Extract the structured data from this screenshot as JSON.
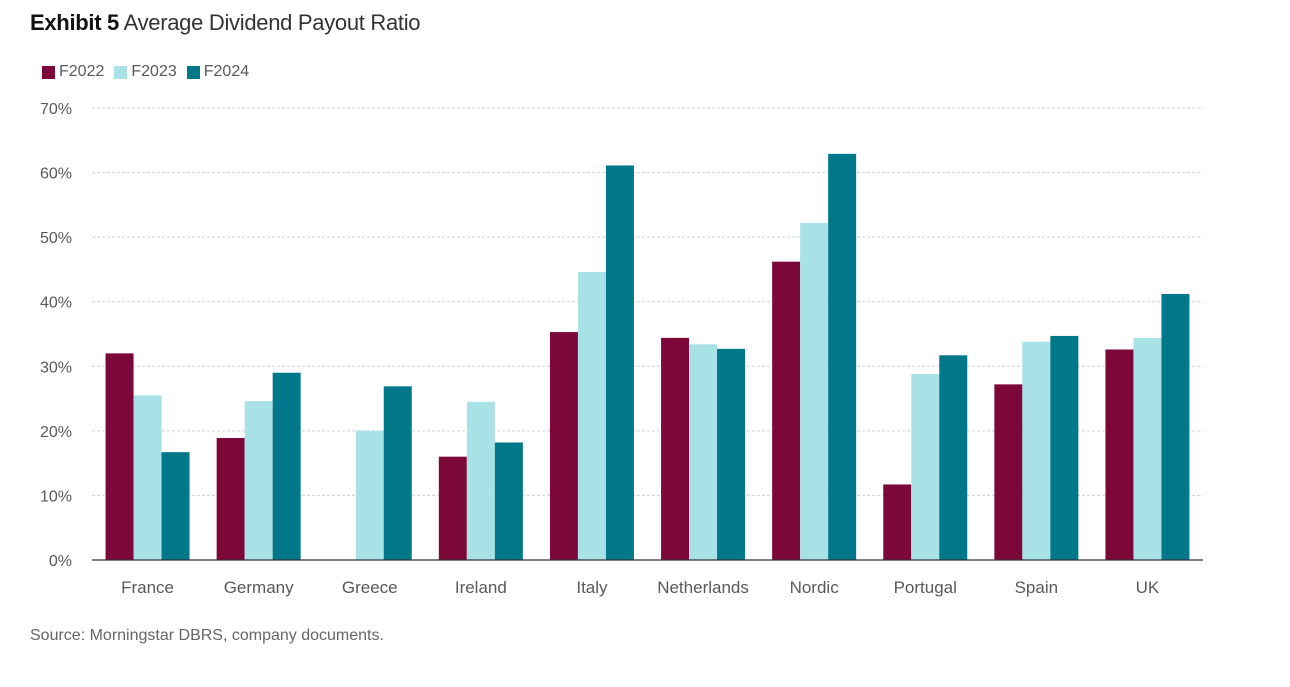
{
  "header": {
    "exhibit": "Exhibit 5",
    "subtitle": "Average Dividend Payout Ratio"
  },
  "source": "Source: Morningstar DBRS, company documents.",
  "colors": {
    "F2022": "#7b0838",
    "F2023": "#a8e1e6",
    "F2024": "#00788a",
    "grid": "#d0d0d0",
    "axis": "#333333",
    "text": "#595959"
  },
  "chart_data": {
    "type": "bar",
    "title": "Average Dividend Payout Ratio",
    "categories": [
      "France",
      "Germany",
      "Greece",
      "Ireland",
      "Italy",
      "Netherlands",
      "Nordic",
      "Portugal",
      "Spain",
      "UK"
    ],
    "series": [
      {
        "name": "F2022",
        "color": "#7b0838",
        "values": [
          32.0,
          18.9,
          null,
          16.0,
          35.3,
          34.4,
          46.2,
          11.7,
          27.2,
          32.6
        ]
      },
      {
        "name": "F2023",
        "color": "#a8e1e6",
        "values": [
          25.5,
          24.6,
          20.0,
          24.5,
          44.6,
          33.4,
          52.2,
          28.8,
          33.8,
          34.4
        ]
      },
      {
        "name": "F2024",
        "color": "#00788a",
        "values": [
          16.7,
          29.0,
          26.9,
          18.2,
          61.1,
          32.7,
          62.9,
          31.7,
          34.7,
          41.2
        ]
      }
    ],
    "y_ticks": [
      "0%",
      "10%",
      "20%",
      "30%",
      "40%",
      "50%",
      "60%",
      "70%"
    ],
    "ylim": [
      0,
      70
    ],
    "grid": true,
    "legend_position": "top-left"
  }
}
